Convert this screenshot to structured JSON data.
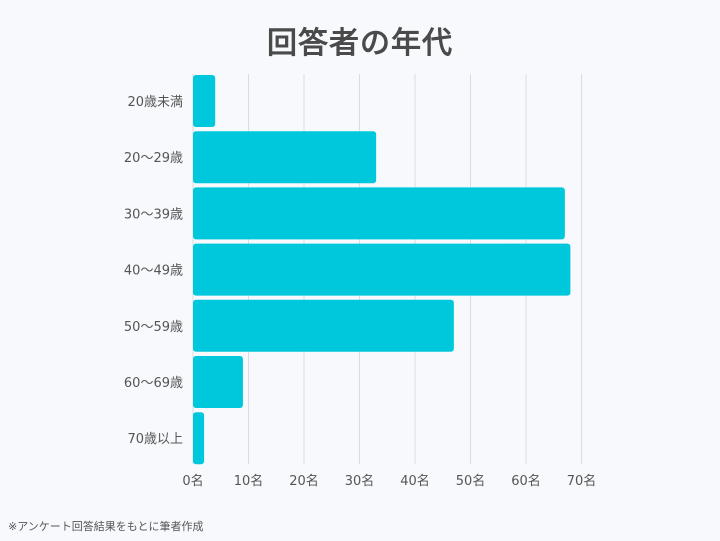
{
  "chart_data": {
    "type": "bar",
    "orientation": "horizontal",
    "title": "回答者の年代",
    "categories": [
      "20歳未満",
      "20〜29歳",
      "30〜39歳",
      "40〜49歳",
      "50〜59歳",
      "60〜69歳",
      "70歳以上"
    ],
    "values": [
      4,
      33,
      67,
      68,
      47,
      9,
      2
    ],
    "x_ticks": [
      "0名",
      "10名",
      "20名",
      "30名",
      "40名",
      "50名",
      "60名",
      "70名"
    ],
    "xlim": [
      0,
      70
    ],
    "grid": true,
    "bar_color": "#00c8dc",
    "grid_color": "#d9dde3"
  },
  "footnote": "※アンケート回答結果をもとに筆者作成"
}
